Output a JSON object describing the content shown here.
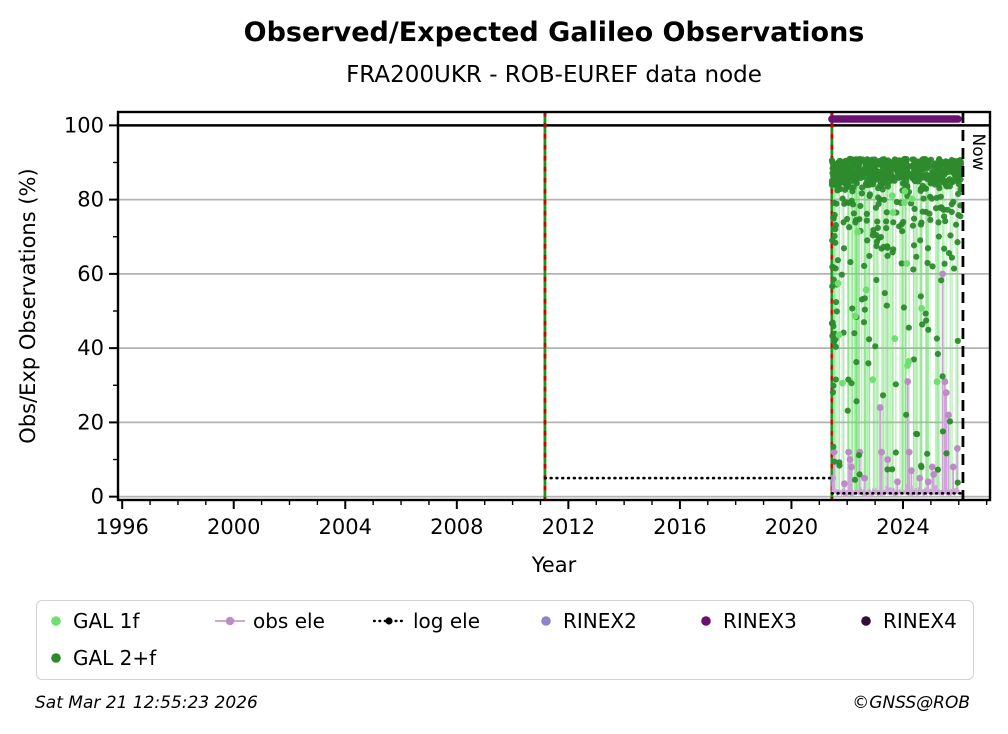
{
  "footer": {
    "timestamp": "Sat Mar 21 12:55:23 2026",
    "credit": "©GNSS@ROB"
  },
  "legend": {
    "items": [
      {
        "id": "gal-1f",
        "label": "GAL 1f",
        "marker": "dot",
        "color": "#6fdf6f"
      },
      {
        "id": "obs-ele",
        "label": "obs ele",
        "marker": "line-dot",
        "color": "#cfa6d8",
        "marker_color": "#bd8cc7"
      },
      {
        "id": "log-ele",
        "label": "log ele",
        "marker": "dotted-line-dot",
        "color": "#000000"
      },
      {
        "id": "rinex2",
        "label": "RINEX2",
        "marker": "dot",
        "color": "#8d85c8"
      },
      {
        "id": "rinex3",
        "label": "RINEX3",
        "marker": "dot",
        "color": "#6b1173"
      },
      {
        "id": "rinex4",
        "label": "RINEX4",
        "marker": "dot",
        "color": "#2e0f35"
      },
      {
        "id": "gal-2f",
        "label": "GAL 2+f",
        "marker": "dot",
        "color": "#2d8a2d"
      }
    ]
  },
  "chart_data": {
    "type": "scatter",
    "title": "Observed/Expected Galileo Observations",
    "subtitle": "FRA200UKR - ROB-EUREF data node",
    "xlabel": "Year",
    "ylabel": "Obs/Exp Observations (%)",
    "xlim": [
      1995.85,
      2027.12
    ],
    "ylim": [
      -0.9,
      103.6
    ],
    "x_major_ticks": [
      1996,
      2000,
      2004,
      2008,
      2012,
      2016,
      2020,
      2024
    ],
    "x_minor_step": 1,
    "y_major_ticks": [
      0,
      20,
      40,
      60,
      80,
      100
    ],
    "y_minor_step": 10,
    "grid_y": [
      0,
      20,
      40,
      60,
      80
    ],
    "grid_color": "#b3b3b3",
    "black_line_y": 100,
    "event_lines": {
      "x": [
        2011.16,
        2021.45
      ],
      "green": "#189618",
      "red": "#d40000"
    },
    "now_line": {
      "x": 2026.15,
      "label": "Now"
    },
    "log_ele": {
      "color": "#000000",
      "segments": [
        {
          "x0": 2011.16,
          "x1": 2021.45,
          "y": 5.0
        },
        {
          "x0": 2021.45,
          "x1": 2026.08,
          "y": 0.9
        }
      ]
    },
    "rinex3_bar": {
      "x0": 2021.45,
      "x1": 2025.97,
      "y": 101.7,
      "color": "#6b1173"
    },
    "obs_ele": {
      "color": "#cfa6d8",
      "marker_color": "#bd8cc7",
      "x0": 2021.5,
      "x1": 2026.07,
      "baseline_y": 1.2,
      "spikes": [
        [
          2021.47,
          5
        ],
        [
          2021.53,
          12
        ],
        [
          2021.9,
          3.5
        ],
        [
          2022.05,
          12
        ],
        [
          2022.1,
          10
        ],
        [
          2022.15,
          8
        ],
        [
          2022.45,
          12
        ],
        [
          2022.62,
          5
        ],
        [
          2023.18,
          24
        ],
        [
          2023.23,
          12
        ],
        [
          2023.45,
          10
        ],
        [
          2023.8,
          4
        ],
        [
          2024.17,
          31
        ],
        [
          2024.22,
          12
        ],
        [
          2024.3,
          7
        ],
        [
          2024.6,
          5
        ],
        [
          2024.9,
          4
        ],
        [
          2025.05,
          8
        ],
        [
          2025.1,
          6
        ],
        [
          2025.42,
          60
        ],
        [
          2025.5,
          31
        ],
        [
          2025.55,
          28
        ],
        [
          2025.63,
          22
        ],
        [
          2025.8,
          8
        ],
        [
          2025.95,
          13
        ]
      ]
    },
    "gal_2f": {
      "color": "#2d8a2d",
      "x0": 2021.45,
      "x1": 2026.1,
      "seed": 1337,
      "band": {
        "n": 560,
        "ymin": 82,
        "ymax": 91,
        "bias": 0.55
      },
      "mid": {
        "n": 115,
        "ymin": 55,
        "ymax": 82,
        "bias": 0.5
      },
      "low": {
        "n": 55,
        "ymin": 3,
        "ymax": 55
      },
      "startup": {
        "n": 28,
        "x_span": 0.22,
        "ymin": 25,
        "ymax": 88
      }
    },
    "gal_1f": {
      "color": "#6fdf6f",
      "visible_n": 18,
      "ymin": 30,
      "ymax": 88,
      "stem_alpha": 0.3,
      "extra_stems": 70,
      "stem_top": 87.5,
      "stem_bottom": 0.8
    }
  }
}
